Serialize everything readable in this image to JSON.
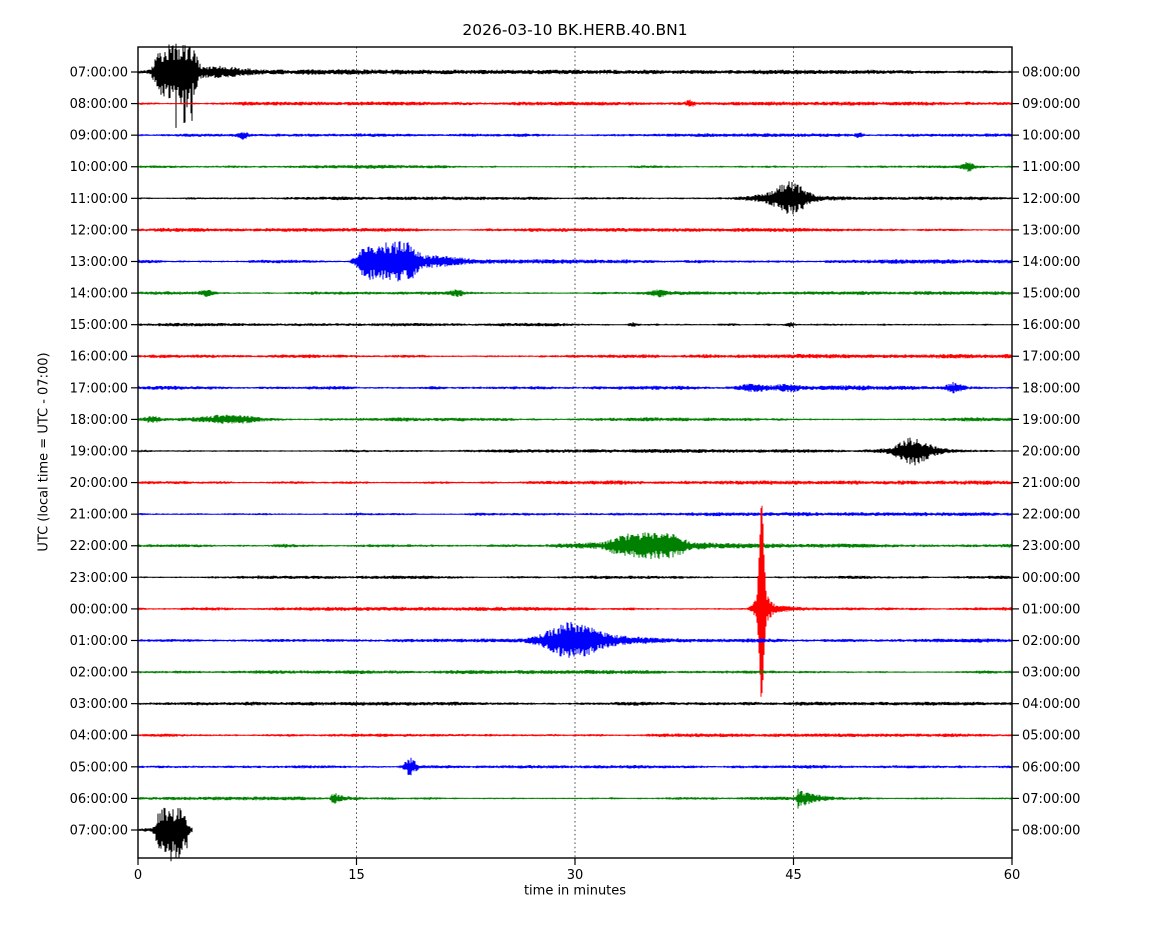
{
  "page": {
    "background": "#ffffff"
  },
  "chart_data": {
    "type": "line",
    "subtype": "seismogram-helicorder-dayplot",
    "title": "2026-03-10 BK.HERB.40.BN1",
    "xlabel": "time in minutes",
    "ylabel": "UTC (local time = UTC - 07:00)",
    "x_range": [
      0,
      60
    ],
    "x_ticks": [
      0,
      15,
      30,
      45,
      60
    ],
    "grid_minutes": [
      15,
      30,
      45
    ],
    "grid_style": "vertical-dotted",
    "minutes_per_row": 60,
    "legend": "none",
    "colors_cycle": [
      "#000000",
      "#ff0000",
      "#0000ff",
      "#008000"
    ],
    "rows": [
      {
        "left_label": "07:00:00",
        "right_label": "08:00:00",
        "color": "#000000",
        "noise": 1.5,
        "end_min": 60,
        "events": [
          {
            "shape": "plateau",
            "center": 2.6,
            "width": 1.5,
            "amp": 25
          },
          {
            "shape": "gauss",
            "center": 5.2,
            "width": 1.6,
            "amp": 4
          },
          {
            "shape": "gauss",
            "center": 9,
            "width": 4,
            "amp": 1.2
          },
          {
            "shape": "downspikes",
            "center": 3.1,
            "width": 0.8,
            "amp": 38
          }
        ]
      },
      {
        "left_label": "08:00:00",
        "right_label": "09:00:00",
        "color": "#ff0000",
        "noise": 1.3,
        "end_min": 60,
        "events": [
          {
            "shape": "gauss",
            "center": 37.9,
            "width": 0.2,
            "amp": 2.5
          }
        ]
      },
      {
        "left_label": "09:00:00",
        "right_label": "10:00:00",
        "color": "#0000ff",
        "noise": 1.2,
        "end_min": 60,
        "events": [
          {
            "shape": "gauss",
            "center": 7.2,
            "width": 0.25,
            "amp": 3
          },
          {
            "shape": "gauss",
            "center": 49.5,
            "width": 0.2,
            "amp": 2.5
          }
        ]
      },
      {
        "left_label": "10:00:00",
        "right_label": "11:00:00",
        "color": "#008000",
        "noise": 1.3,
        "end_min": 60,
        "events": [
          {
            "shape": "gauss",
            "center": 57,
            "width": 0.3,
            "amp": 3.5
          }
        ]
      },
      {
        "left_label": "11:00:00",
        "right_label": "12:00:00",
        "color": "#000000",
        "noise": 1.2,
        "end_min": 60,
        "events": [
          {
            "shape": "gauss",
            "center": 44.8,
            "width": 0.8,
            "amp": 13
          },
          {
            "shape": "gauss",
            "center": 44,
            "width": 1.8,
            "amp": 3.5
          }
        ]
      },
      {
        "left_label": "12:00:00",
        "right_label": "13:00:00",
        "color": "#ff0000",
        "noise": 1.3,
        "end_min": 60,
        "events": []
      },
      {
        "left_label": "13:00:00",
        "right_label": "14:00:00",
        "color": "#0000ff",
        "noise": 1.5,
        "end_min": 60,
        "events": [
          {
            "shape": "plateau",
            "center": 17.1,
            "width": 2.1,
            "amp": 18
          },
          {
            "shape": "gauss",
            "center": 20.3,
            "width": 1.5,
            "amp": 4
          }
        ]
      },
      {
        "left_label": "14:00:00",
        "right_label": "15:00:00",
        "color": "#008000",
        "noise": 1.3,
        "end_min": 60,
        "events": [
          {
            "shape": "gauss",
            "center": 4.7,
            "width": 0.3,
            "amp": 2.5
          },
          {
            "shape": "gauss",
            "center": 21.9,
            "width": 0.3,
            "amp": 2.5
          },
          {
            "shape": "gauss",
            "center": 35.8,
            "width": 0.3,
            "amp": 2.5
          }
        ]
      },
      {
        "left_label": "15:00:00",
        "right_label": "16:00:00",
        "color": "#000000",
        "noise": 1.2,
        "end_min": 60,
        "events": [
          {
            "shape": "gauss",
            "center": 34,
            "width": 0.2,
            "amp": 2
          },
          {
            "shape": "gauss",
            "center": 44.8,
            "width": 0.2,
            "amp": 2
          }
        ]
      },
      {
        "left_label": "16:00:00",
        "right_label": "17:00:00",
        "color": "#ff0000",
        "noise": 1.5,
        "end_min": 60,
        "events": []
      },
      {
        "left_label": "17:00:00",
        "right_label": "18:00:00",
        "color": "#0000ff",
        "noise": 1.7,
        "end_min": 60,
        "events": [
          {
            "shape": "gauss",
            "center": 42.3,
            "width": 0.8,
            "amp": 3.5
          },
          {
            "shape": "gauss",
            "center": 44.6,
            "width": 0.6,
            "amp": 3.5
          },
          {
            "shape": "gauss",
            "center": 56,
            "width": 0.4,
            "amp": 4.5
          }
        ]
      },
      {
        "left_label": "18:00:00",
        "right_label": "19:00:00",
        "color": "#008000",
        "noise": 1.4,
        "end_min": 60,
        "events": [
          {
            "shape": "gauss",
            "center": 1,
            "width": 0.4,
            "amp": 2.5
          },
          {
            "shape": "gauss",
            "center": 6.6,
            "width": 1.4,
            "amp": 3.5
          }
        ]
      },
      {
        "left_label": "19:00:00",
        "right_label": "20:00:00",
        "color": "#000000",
        "noise": 1.3,
        "end_min": 60,
        "events": [
          {
            "shape": "gauss",
            "center": 53.2,
            "width": 0.8,
            "amp": 11
          },
          {
            "shape": "gauss",
            "center": 53.8,
            "width": 1.6,
            "amp": 3
          }
        ]
      },
      {
        "left_label": "20:00:00",
        "right_label": "21:00:00",
        "color": "#ff0000",
        "noise": 1.4,
        "end_min": 60,
        "events": []
      },
      {
        "left_label": "21:00:00",
        "right_label": "22:00:00",
        "color": "#0000ff",
        "noise": 1.3,
        "end_min": 60,
        "events": []
      },
      {
        "left_label": "22:00:00",
        "right_label": "23:00:00",
        "color": "#008000",
        "noise": 1.5,
        "end_min": 60,
        "events": [
          {
            "shape": "plateau",
            "center": 35,
            "width": 2.5,
            "amp": 8.5
          },
          {
            "shape": "gauss",
            "center": 35,
            "width": 3.6,
            "amp": 2.5
          }
        ]
      },
      {
        "left_label": "23:00:00",
        "right_label": "00:00:00",
        "color": "#000000",
        "noise": 1.2,
        "end_min": 60,
        "events": []
      },
      {
        "left_label": "00:00:00",
        "right_label": "01:00:00",
        "color": "#ff0000",
        "noise": 1.3,
        "end_min": 60,
        "events": [
          {
            "shape": "spike",
            "center": 42.8,
            "amp_up": 110,
            "amp_down": 85,
            "tail_amp": 7,
            "tail_decay": 1.3
          }
        ]
      },
      {
        "left_label": "01:00:00",
        "right_label": "02:00:00",
        "color": "#0000ff",
        "noise": 1.4,
        "end_min": 60,
        "events": [
          {
            "shape": "gauss",
            "center": 29.7,
            "width": 1.3,
            "amp": 14
          },
          {
            "shape": "gauss",
            "center": 31.3,
            "width": 2.3,
            "amp": 3.5
          }
        ]
      },
      {
        "left_label": "02:00:00",
        "right_label": "03:00:00",
        "color": "#008000",
        "noise": 1.3,
        "end_min": 60,
        "events": []
      },
      {
        "left_label": "03:00:00",
        "right_label": "04:00:00",
        "color": "#000000",
        "noise": 1.3,
        "end_min": 60,
        "events": []
      },
      {
        "left_label": "04:00:00",
        "right_label": "05:00:00",
        "color": "#ff0000",
        "noise": 1.2,
        "end_min": 60,
        "events": []
      },
      {
        "left_label": "05:00:00",
        "right_label": "06:00:00",
        "color": "#0000ff",
        "noise": 1.2,
        "end_min": 60,
        "events": [
          {
            "shape": "gauss",
            "center": 18.7,
            "width": 0.3,
            "amp": 8
          }
        ]
      },
      {
        "left_label": "06:00:00",
        "right_label": "07:00:00",
        "color": "#008000",
        "noise": 1.3,
        "end_min": 60,
        "events": [
          {
            "shape": "decay",
            "center": 13.3,
            "width": 0.8,
            "amp": 6
          },
          {
            "shape": "decay",
            "center": 45.3,
            "width": 1.1,
            "amp": 9
          }
        ]
      },
      {
        "left_label": "07:00:00",
        "right_label": "08:00:00",
        "color": "#000000",
        "noise": 1.6,
        "end_min": 3.7,
        "events": [
          {
            "shape": "plateau",
            "center": 2.3,
            "width": 1.1,
            "amp": 21
          },
          {
            "shape": "downspikes",
            "center": 2.8,
            "width": 0.6,
            "amp": 14
          }
        ]
      }
    ]
  }
}
